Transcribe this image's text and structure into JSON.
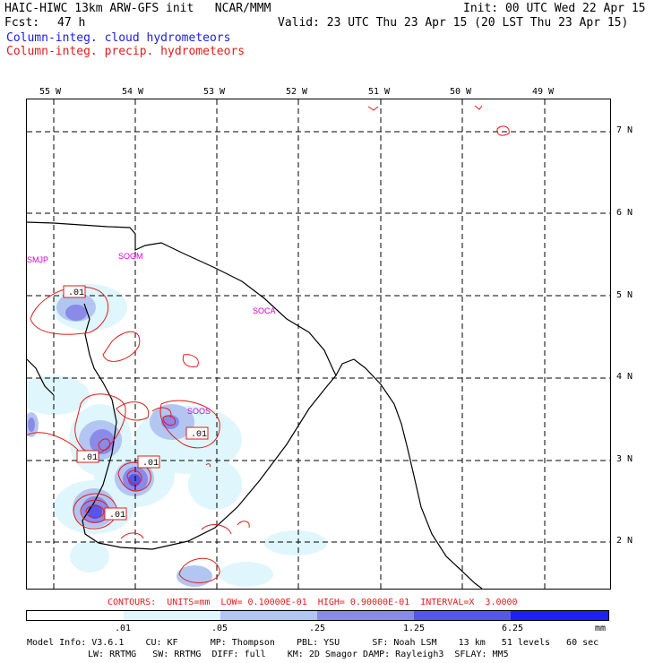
{
  "header": {
    "title_left": "HAIC-HIWC 13km ARW-GFS init   NCAR/MMM",
    "fcst_label": "Fcst:",
    "fcst_value": "47 h",
    "init": "Init: 00 UTC Wed 22 Apr 15",
    "valid": "Valid: 23 UTC Thu 23 Apr 15 (20 LST Thu 23 Apr 15)",
    "field1": "Column-integ. cloud hydrometeors",
    "field2": "Column-integ. precip. hydrometeors"
  },
  "map": {
    "lon_labels": [
      "55 W",
      "54 W",
      "53 W",
      "52 W",
      "51 W",
      "50 W",
      "49 W"
    ],
    "lat_labels": [
      "7 N",
      "6 N",
      "5 N",
      "4 N",
      "3 N",
      "2 N"
    ],
    "stations": [
      "SMJP",
      "SOGM",
      "SOCA",
      "SOOS"
    ],
    "contour_labels": [
      ".01",
      ".01",
      ".01",
      ".01",
      ".01"
    ]
  },
  "contours_line": "CONTOURS:  UNITS=mm  LOW= 0.10000E-01  HIGH= 0.90000E-01  INTERVAL=X  3.0000",
  "colorbar": {
    "ticks": [
      ".01",
      ".05",
      ".25",
      "1.25",
      "6.25"
    ],
    "unit": "mm",
    "colors": [
      "#ffffff",
      "#dff6fc",
      "#b3c6f2",
      "#8a8ae8",
      "#5656ec",
      "#2020f2"
    ]
  },
  "model_info": {
    "line1": "Model Info: V3.6.1    CU: KF      MP: Thompson    PBL: YSU      SF: Noah LSM    13 km   51 levels   60 sec",
    "line2": "LW: RRTMG   SW: RRTMG  DIFF: full    KM: 2D Smagor DAMP: Rayleigh3  SFLAY: MM5"
  },
  "colors": {
    "cloud": "#1c1ce0",
    "precip": "#e01c1c",
    "station": "#d000d0"
  }
}
